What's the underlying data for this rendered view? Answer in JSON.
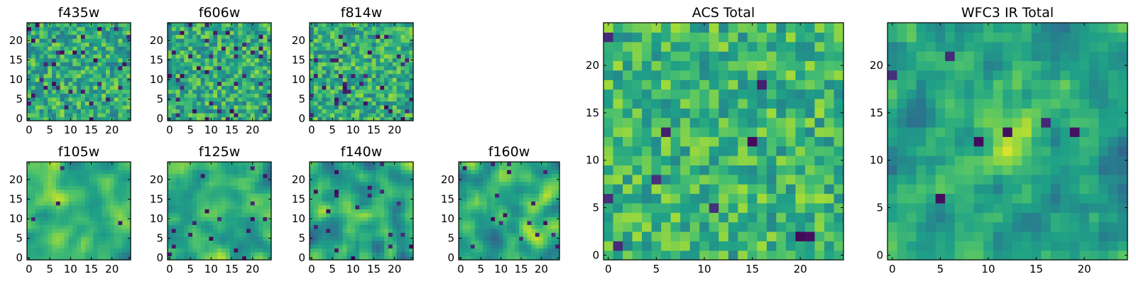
{
  "colormap": {
    "name": "viridis",
    "stops": [
      "#440154",
      "#46327e",
      "#365c8d",
      "#277f8e",
      "#1fa187",
      "#4ac16d",
      "#a0da39",
      "#fde725"
    ]
  },
  "chart_data": [
    {
      "id": "f435w",
      "type": "heatmap",
      "title": "f435w",
      "grid_size": 25,
      "xticks": [
        0,
        5,
        10,
        15,
        20
      ],
      "yticks": [
        0,
        5,
        10,
        15,
        20
      ],
      "seed": 11,
      "smooth": 0,
      "bias": 0.62,
      "spread": 0.22,
      "dark_fraction": 0.05
    },
    {
      "id": "f606w",
      "type": "heatmap",
      "title": "f606w",
      "grid_size": 25,
      "xticks": [
        0,
        5,
        10,
        15,
        20
      ],
      "yticks": [
        0,
        5,
        10,
        15,
        20
      ],
      "seed": 23,
      "smooth": 0,
      "bias": 0.62,
      "spread": 0.22,
      "dark_fraction": 0.06
    },
    {
      "id": "f814w",
      "type": "heatmap",
      "title": "f814w",
      "grid_size": 25,
      "xticks": [
        0,
        5,
        10,
        15,
        20
      ],
      "yticks": [
        0,
        5,
        10,
        15,
        20
      ],
      "seed": 37,
      "smooth": 0,
      "bias": 0.62,
      "spread": 0.22,
      "dark_fraction": 0.05
    },
    {
      "id": "f105w",
      "type": "heatmap",
      "title": "f105w",
      "grid_size": 25,
      "xticks": [
        0,
        5,
        10,
        15,
        20
      ],
      "yticks": [
        0,
        5,
        10,
        15,
        20
      ],
      "seed": 41,
      "smooth": 2,
      "bias": 0.64,
      "spread": 0.26,
      "dark_fraction": 0.01
    },
    {
      "id": "f125w",
      "type": "heatmap",
      "title": "f125w",
      "grid_size": 25,
      "xticks": [
        0,
        5,
        10,
        15,
        20
      ],
      "yticks": [
        0,
        5,
        10,
        15,
        20
      ],
      "seed": 53,
      "smooth": 2,
      "bias": 0.62,
      "spread": 0.28,
      "dark_fraction": 0.02
    },
    {
      "id": "f140w",
      "type": "heatmap",
      "title": "f140w",
      "grid_size": 25,
      "xticks": [
        0,
        5,
        10,
        15,
        20
      ],
      "yticks": [
        0,
        5,
        10,
        15,
        20
      ],
      "seed": 67,
      "smooth": 2,
      "bias": 0.6,
      "spread": 0.3,
      "dark_fraction": 0.02
    },
    {
      "id": "f160w",
      "type": "heatmap",
      "title": "f160w",
      "grid_size": 25,
      "xticks": [
        0,
        5,
        10,
        15,
        20
      ],
      "yticks": [
        0,
        5,
        10,
        15,
        20
      ],
      "seed": 79,
      "smooth": 2,
      "bias": 0.62,
      "spread": 0.28,
      "dark_fraction": 0.02
    },
    {
      "id": "acs-total",
      "type": "heatmap",
      "title": "ACS Total",
      "grid_size": 25,
      "xticks": [
        0,
        5,
        10,
        15,
        20
      ],
      "yticks": [
        0,
        5,
        10,
        15,
        20
      ],
      "seed": 97,
      "smooth": 0,
      "bias": 0.66,
      "spread": 0.2,
      "dark_fraction": 0.02
    },
    {
      "id": "wfc3-ir-total",
      "type": "heatmap",
      "title": "WFC3 IR Total",
      "grid_size": 25,
      "xticks": [
        0,
        5,
        10,
        15,
        20
      ],
      "yticks": [
        0,
        5,
        10,
        15,
        20
      ],
      "seed": 113,
      "smooth": 1,
      "bias": 0.55,
      "spread": 0.22,
      "dark_fraction": 0.015,
      "peak": {
        "x": 12,
        "y": 12,
        "radius": 3,
        "amount": 0.4
      }
    }
  ]
}
